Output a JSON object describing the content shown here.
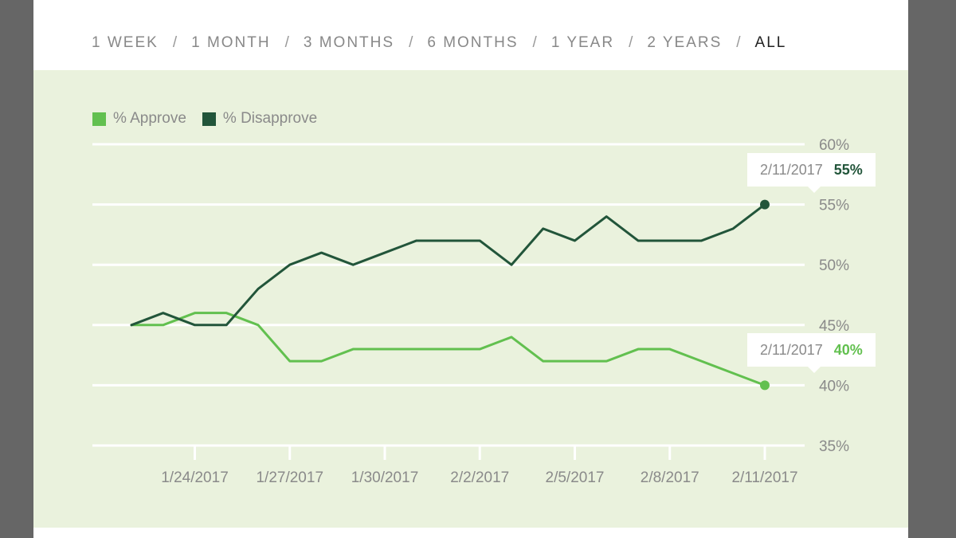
{
  "range_selector": {
    "options": [
      "1 WEEK",
      "1 MONTH",
      "3 MONTHS",
      "6 MONTHS",
      "1 YEAR",
      "2 YEARS",
      "ALL"
    ],
    "separator": "/",
    "selected": "ALL"
  },
  "legend": {
    "approve_label": "% Approve",
    "disapprove_label": "% Disapprove"
  },
  "tooltips": {
    "disapprove": {
      "date": "2/11/2017",
      "value": "55%"
    },
    "approve": {
      "date": "2/11/2017",
      "value": "40%"
    }
  },
  "colors": {
    "approve": "#62c04f",
    "disapprove": "#22553a",
    "grid": "#ffffff",
    "panel_background": "#eaf2dd",
    "axis_text": "#8a8a8a"
  },
  "chart_data": {
    "type": "line",
    "title": "",
    "xlabel": "",
    "ylabel": "",
    "x": [
      "1/22/2017",
      "1/23/2017",
      "1/24/2017",
      "1/25/2017",
      "1/26/2017",
      "1/27/2017",
      "1/28/2017",
      "1/29/2017",
      "1/30/2017",
      "1/31/2017",
      "2/1/2017",
      "2/2/2017",
      "2/3/2017",
      "2/4/2017",
      "2/5/2017",
      "2/6/2017",
      "2/7/2017",
      "2/8/2017",
      "2/9/2017",
      "2/10/2017",
      "2/11/2017"
    ],
    "x_tick_labels": [
      "1/24/2017",
      "1/27/2017",
      "1/30/2017",
      "2/2/2017",
      "2/5/2017",
      "2/8/2017",
      "2/11/2017"
    ],
    "ylim": [
      35,
      60
    ],
    "y_ticks": [
      35,
      40,
      45,
      50,
      55,
      60
    ],
    "y_tick_labels": [
      "35%",
      "40%",
      "45%",
      "50%",
      "55%",
      "60%"
    ],
    "grid": true,
    "legend_position": "top-left",
    "series": [
      {
        "name": "% Approve",
        "values": [
          45,
          45,
          46,
          46,
          45,
          42,
          42,
          43,
          43,
          43,
          43,
          43,
          44,
          42,
          42,
          42,
          43,
          43,
          42,
          41,
          40
        ]
      },
      {
        "name": "% Disapprove",
        "values": [
          45,
          46,
          45,
          45,
          48,
          50,
          51,
          50,
          51,
          52,
          52,
          52,
          50,
          53,
          52,
          54,
          52,
          52,
          52,
          53,
          55
        ]
      }
    ]
  }
}
